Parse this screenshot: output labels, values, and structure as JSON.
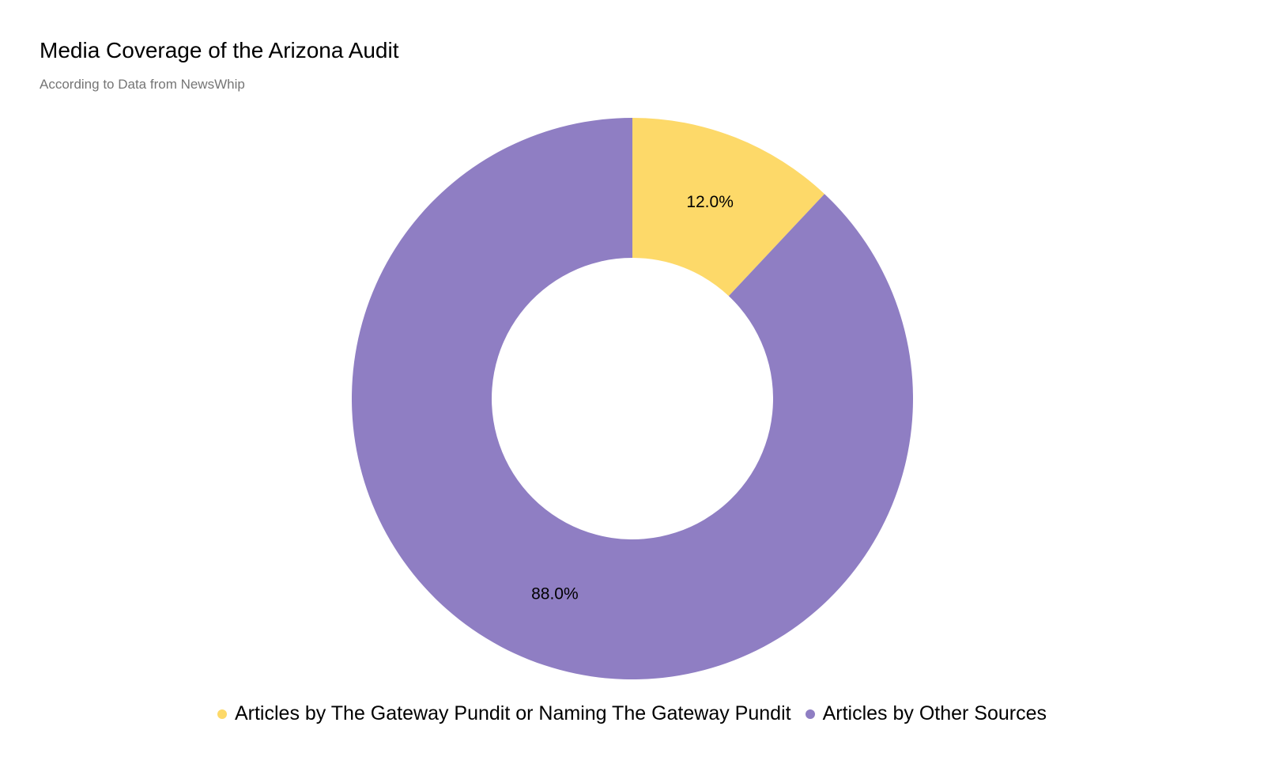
{
  "chart_data": {
    "type": "pie",
    "donut": true,
    "title": "Media Coverage of the Arizona Audit",
    "subtitle": "According to Data from NewsWhip",
    "slices": [
      {
        "name": "Articles by The Gateway Pundit or Naming The Gateway Pundit",
        "value": 12.0,
        "label": "12.0%",
        "color": "#fdd969"
      },
      {
        "name": "Articles by Other Sources",
        "value": 88.0,
        "label": "88.0%",
        "color": "#8f7ec3"
      }
    ],
    "legend_position": "bottom"
  }
}
